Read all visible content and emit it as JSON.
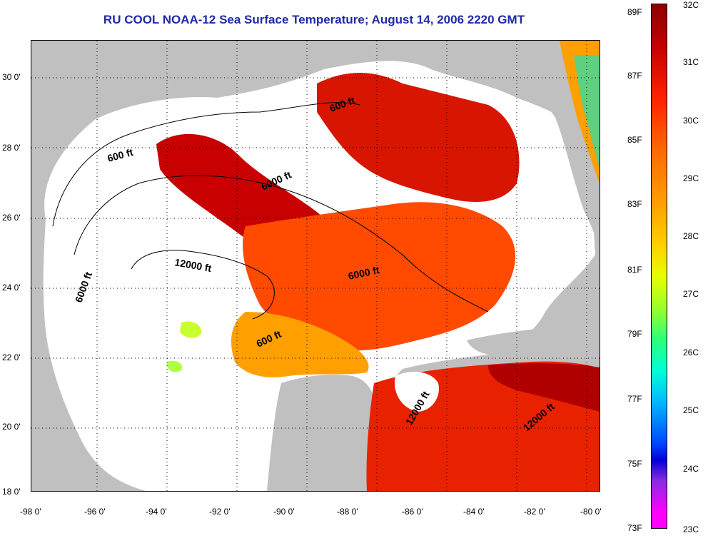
{
  "title": "RU COOL  NOAA-12  Sea Surface Temperature;  August 14, 2006 2220 GMT",
  "map": {
    "lon_labels": [
      "-98 0'",
      "-96 0'",
      "-94 0'",
      "-92 0'",
      "-90 0'",
      "-88 0'",
      "-86 0'",
      "-84 0'",
      "-82 0'",
      "-80 0'"
    ],
    "lat_labels": [
      "30 0'",
      "28 0'",
      "26 0'",
      "24 0'",
      "22 0'",
      "20 0'",
      "18 0'"
    ],
    "contour_labels": [
      {
        "text": "600 ft"
      },
      {
        "text": "600 ft"
      },
      {
        "text": "600 ft"
      },
      {
        "text": "6000 ft"
      },
      {
        "text": "6000 ft"
      },
      {
        "text": "6000 ft"
      },
      {
        "text": "12000 ft"
      },
      {
        "text": "12000 ft"
      },
      {
        "text": "12000 ft"
      }
    ],
    "colors": {
      "land": "#c0c0c0",
      "no_data": "#ffffff",
      "hot": "#c80000",
      "warm": "#ff4a00",
      "mid": "#ffb000",
      "cool": "#c8ff30"
    }
  },
  "colorbar": {
    "fahrenheit_labels": [
      "89F",
      "87F",
      "85F",
      "83F",
      "81F",
      "79F",
      "77F",
      "75F",
      "73F"
    ],
    "celsius_labels": [
      "32C",
      "31C",
      "30C",
      "29C",
      "28C",
      "27C",
      "26C",
      "25C",
      "24C",
      "23C"
    ]
  }
}
